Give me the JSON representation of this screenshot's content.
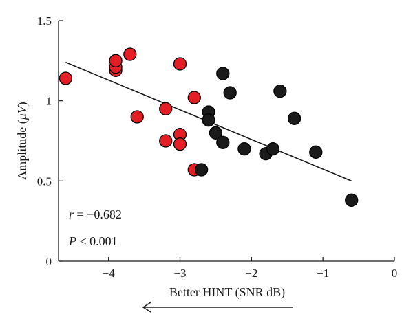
{
  "chart_data": {
    "type": "scatter",
    "title": "",
    "xlabel": "Better HINT (SNR dB)",
    "ylabel_prefix": "Amplitude (",
    "ylabel_unit": "μV",
    "ylabel_suffix": ")",
    "xlim": [
      -4.7,
      0
    ],
    "ylim": [
      0,
      1.5
    ],
    "x_ticks": [
      -4,
      -3,
      -2,
      -1,
      0
    ],
    "y_ticks": [
      0,
      0.5,
      1,
      1.5
    ],
    "x_tick_labels": [
      "−4",
      "−3",
      "−2",
      "−1",
      "0"
    ],
    "y_tick_labels": [
      "0",
      "0.5",
      "1",
      "1.5"
    ],
    "grid": false,
    "series": [
      {
        "color": "#e31e24",
        "points": [
          {
            "x": -4.6,
            "y": 1.14
          },
          {
            "x": -3.9,
            "y": 1.19
          },
          {
            "x": -3.9,
            "y": 1.21
          },
          {
            "x": -3.9,
            "y": 1.25
          },
          {
            "x": -3.7,
            "y": 1.29
          },
          {
            "x": -3.6,
            "y": 0.9
          },
          {
            "x": -3.2,
            "y": 0.95
          },
          {
            "x": -3.2,
            "y": 0.75
          },
          {
            "x": -3.0,
            "y": 1.23
          },
          {
            "x": -3.0,
            "y": 0.79
          },
          {
            "x": -3.0,
            "y": 0.73
          },
          {
            "x": -2.8,
            "y": 1.02
          },
          {
            "x": -2.8,
            "y": 0.57
          }
        ]
      },
      {
        "color": "#1a1a1a",
        "points": [
          {
            "x": -2.7,
            "y": 0.57
          },
          {
            "x": -2.6,
            "y": 0.93
          },
          {
            "x": -2.6,
            "y": 0.88
          },
          {
            "x": -2.5,
            "y": 0.8
          },
          {
            "x": -2.4,
            "y": 1.17
          },
          {
            "x": -2.4,
            "y": 0.74
          },
          {
            "x": -2.3,
            "y": 1.05
          },
          {
            "x": -2.1,
            "y": 0.7
          },
          {
            "x": -1.8,
            "y": 0.67
          },
          {
            "x": -1.7,
            "y": 0.7
          },
          {
            "x": -1.6,
            "y": 1.06
          },
          {
            "x": -1.4,
            "y": 0.89
          },
          {
            "x": -1.1,
            "y": 0.68
          },
          {
            "x": -0.6,
            "y": 0.38
          }
        ]
      }
    ],
    "regression_line": {
      "x1": -4.6,
      "y1": 1.24,
      "x2": -0.6,
      "y2": 0.5
    },
    "annotations": {
      "r_var": "r",
      "r_text": " = −0.682",
      "p_var": "P",
      "p_text": " < 0.001"
    },
    "arrow_direction": "left"
  }
}
